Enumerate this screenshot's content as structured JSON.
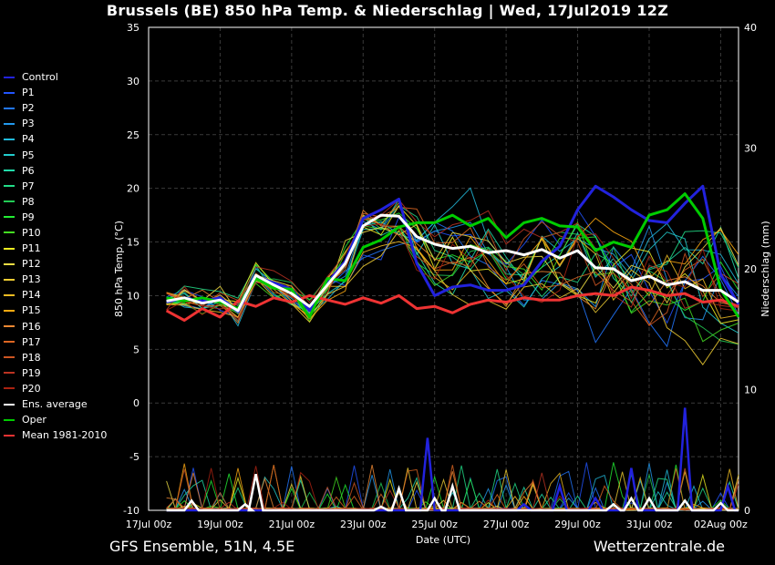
{
  "title": "Brussels  (BE)  850 hPa Temp. & Niederschlag | Wed, 17Jul2019 12Z",
  "footer_left": "GFS Ensemble, 51N, 4.5E",
  "footer_right": "Wetterzentrale.de",
  "colors": {
    "background": "#000000",
    "grid": "#444444",
    "control": "#2222dd",
    "ens_avg": "#ffffff",
    "oper": "#00cc00",
    "mean": "#ee3333"
  },
  "legend": [
    {
      "label": "Control",
      "color": "#2222dd"
    },
    {
      "label": "P1",
      "color": "#2255ff"
    },
    {
      "label": "P2",
      "color": "#2277ff"
    },
    {
      "label": "P3",
      "color": "#2299ee"
    },
    {
      "label": "P4",
      "color": "#22bbdd"
    },
    {
      "label": "P5",
      "color": "#22cccc"
    },
    {
      "label": "P6",
      "color": "#22ddaa"
    },
    {
      "label": "P7",
      "color": "#22dd88"
    },
    {
      "label": "P8",
      "color": "#22cc55"
    },
    {
      "label": "P9",
      "color": "#22ee33"
    },
    {
      "label": "P10",
      "color": "#44dd22"
    },
    {
      "label": "P11",
      "color": "#eeee22"
    },
    {
      "label": "P12",
      "color": "#eedd44"
    },
    {
      "label": "P13",
      "color": "#eecc33"
    },
    {
      "label": "P14",
      "color": "#eebb22"
    },
    {
      "label": "P15",
      "color": "#ffaa11"
    },
    {
      "label": "P16",
      "color": "#ee8833"
    },
    {
      "label": "P17",
      "color": "#dd6622"
    },
    {
      "label": "P18",
      "color": "#cc5522"
    },
    {
      "label": "P19",
      "color": "#bb3322"
    },
    {
      "label": "P20",
      "color": "#aa2211"
    },
    {
      "label": "Ens. average",
      "color": "#ffffff"
    },
    {
      "label": "Oper",
      "color": "#00cc00"
    },
    {
      "label": "Mean 1981-2010",
      "color": "#ee3333"
    }
  ],
  "chart_data": {
    "type": "line",
    "title": "Brussels  (BE)  850 hPa Temp. & Niederschlag | Wed, 17Jul2019 12Z",
    "xlabel": "Date (UTC)",
    "ylabel": "850 hPa Temp. (°C)",
    "y2label": "Niederschlag (mm)",
    "ylim": [
      -10,
      35
    ],
    "y2lim": [
      0,
      40
    ],
    "yticks": [
      -10,
      -5,
      0,
      5,
      10,
      15,
      20,
      25,
      30,
      35
    ],
    "y2ticks": [
      0,
      10,
      20,
      30,
      40
    ],
    "xticks": [
      "17Jul 00z",
      "19Jul 00z",
      "21Jul 00z",
      "23Jul 00z",
      "25Jul 00z",
      "27Jul 00z",
      "29Jul 00z",
      "31Jul 00z",
      "02Aug 00z"
    ],
    "x_days_range": [
      0,
      16.5
    ],
    "grid": true,
    "legend_position": "left",
    "series": [
      {
        "name": "Ens. average",
        "color": "#ffffff",
        "x": [
          0.5,
          1,
          1.5,
          2,
          2.5,
          3,
          3.5,
          4,
          4.5,
          5,
          5.5,
          6,
          6.5,
          7,
          7.5,
          8,
          8.5,
          9,
          9.5,
          10,
          10.5,
          11,
          11.5,
          12,
          12.5,
          13,
          13.5,
          14,
          14.5,
          15,
          15.5,
          16,
          16.5
        ],
        "values": [
          9.5,
          9.8,
          9.3,
          9.6,
          8.6,
          11.9,
          11.0,
          10.2,
          9.0,
          11.0,
          13.0,
          16.5,
          17.5,
          17.4,
          15.5,
          14.8,
          14.4,
          14.6,
          14.0,
          14.2,
          13.8,
          14.3,
          13.5,
          14.2,
          12.6,
          12.5,
          11.4,
          11.8,
          11.0,
          11.3,
          10.5,
          10.5,
          9.4
        ]
      },
      {
        "name": "Oper",
        "color": "#00cc00",
        "x": [
          0.5,
          1,
          1.5,
          2,
          2.5,
          3,
          3.5,
          4,
          4.5,
          5,
          5.5,
          6,
          6.5,
          7,
          7.5,
          8,
          8.5,
          9,
          9.5,
          10,
          10.5,
          11,
          11.5,
          12,
          12.5,
          13,
          13.5,
          14,
          14.5,
          15,
          15.5,
          16,
          16.5
        ],
        "values": [
          9.8,
          9.5,
          9.8,
          9.4,
          8.8,
          11.6,
          10.7,
          10.6,
          8.0,
          11.6,
          11.4,
          14.5,
          15.2,
          16.4,
          16.8,
          16.8,
          17.5,
          16.5,
          17.2,
          15.4,
          16.8,
          17.2,
          16.5,
          16.4,
          14.2,
          15.0,
          14.5,
          17.5,
          18.0,
          19.5,
          17.2,
          10.6,
          8.0
        ]
      },
      {
        "name": "Control",
        "color": "#2222dd",
        "x": [
          0.5,
          1,
          1.5,
          2,
          2.5,
          3,
          3.5,
          4,
          4.5,
          5,
          5.5,
          6,
          6.5,
          7,
          7.5,
          8,
          8.5,
          9,
          9.5,
          10,
          10.5,
          11,
          11.5,
          12,
          12.5,
          13,
          13.5,
          14,
          14.5,
          15,
          15.5,
          16,
          16.5
        ],
        "values": [
          9.4,
          9.8,
          9.5,
          9.8,
          8.5,
          11.8,
          11.2,
          10.6,
          8.6,
          11.2,
          13.2,
          17.2,
          18.0,
          19.0,
          13.0,
          10.0,
          10.8,
          11.0,
          10.5,
          10.5,
          11.0,
          13.2,
          14.6,
          18.0,
          20.2,
          19.2,
          18.0,
          17.0,
          16.8,
          18.6,
          20.2,
          12.0,
          9.2
        ]
      },
      {
        "name": "Mean 1981-2010",
        "color": "#ee3333",
        "x": [
          0.5,
          1,
          1.5,
          2,
          2.5,
          3,
          3.5,
          4,
          4.5,
          5,
          5.5,
          6,
          6.5,
          7,
          7.5,
          8,
          8.5,
          9,
          9.5,
          10,
          10.5,
          11,
          11.5,
          12,
          12.5,
          13,
          13.5,
          14,
          14.5,
          15,
          15.5,
          16,
          16.5
        ],
        "values": [
          8.6,
          7.7,
          8.8,
          8.0,
          9.5,
          9.0,
          9.8,
          9.4,
          10.0,
          9.6,
          9.2,
          9.8,
          9.3,
          10.0,
          8.8,
          9.0,
          8.4,
          9.2,
          9.6,
          9.4,
          9.8,
          9.6,
          9.6,
          10.0,
          10.2,
          10.0,
          10.8,
          10.5,
          10.0,
          10.2,
          9.4,
          9.6,
          9.0
        ]
      }
    ],
    "precipitation": {
      "unit": "mm",
      "ens_average": {
        "x": [
          1.2,
          2.7,
          3.0,
          6.5,
          7.0,
          8.0,
          8.5,
          13.0,
          13.5,
          14.0,
          15.0,
          16.0
        ],
        "values": [
          0.8,
          0.5,
          3.0,
          0.3,
          1.8,
          1.0,
          2.0,
          0.5,
          1.0,
          1.0,
          0.8,
          0.6
        ]
      },
      "control": {
        "x": [
          7.8,
          10.5,
          11.5,
          12.5,
          13.5,
          15.0,
          16.2
        ],
        "values": [
          6.0,
          0.5,
          2.0,
          1.0,
          3.5,
          8.5,
          2.0
        ]
      }
    }
  }
}
